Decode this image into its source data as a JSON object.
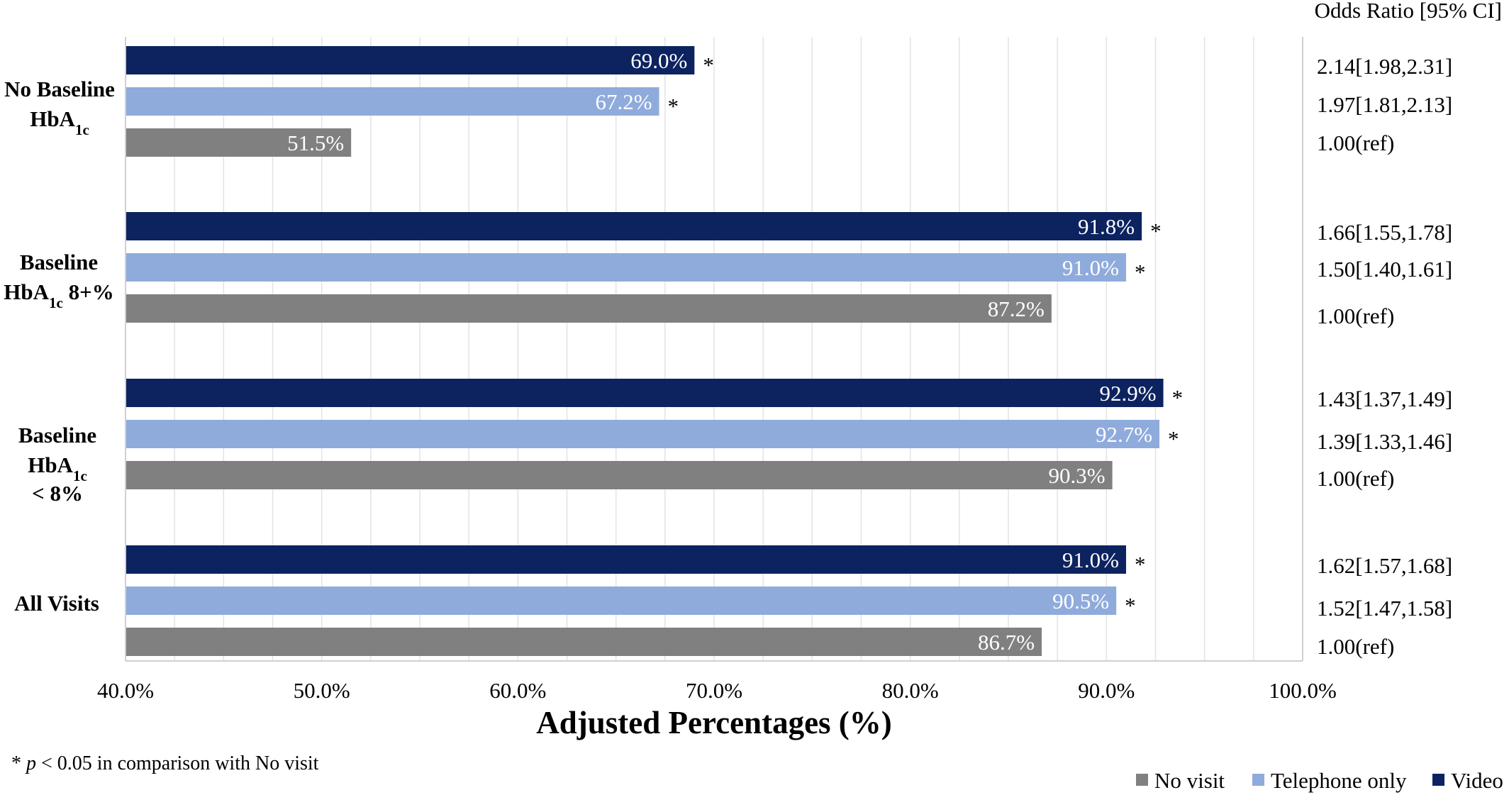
{
  "chart_data": {
    "type": "bar",
    "orientation": "horizontal",
    "xlabel": "Adjusted Percentages (%)",
    "xlim": [
      40,
      100
    ],
    "xticks": [
      "40.0%",
      "50.0%",
      "60.0%",
      "70.0%",
      "80.0%",
      "90.0%",
      "100.0%"
    ],
    "or_header": "Odds Ratio [95% CI]",
    "groups": [
      {
        "label_lines": [
          "No Baseline",
          "HbA_1c"
        ],
        "bars": [
          {
            "series": "Video",
            "value": 69.0,
            "label": "69.0%",
            "star": true,
            "or": "2.14[1.98,2.31]"
          },
          {
            "series": "Telephone only",
            "value": 67.2,
            "label": "67.2%",
            "star": true,
            "or": "1.97[1.81,2.13]"
          },
          {
            "series": "No visit",
            "value": 51.5,
            "label": "51.5%",
            "star": false,
            "or": "1.00(ref)"
          }
        ]
      },
      {
        "label_lines": [
          "Baseline",
          "HbA_1c 8+%"
        ],
        "bars": [
          {
            "series": "Video",
            "value": 91.8,
            "label": "91.8%",
            "star": true,
            "or": "1.66[1.55,1.78]"
          },
          {
            "series": "Telephone only",
            "value": 91.0,
            "label": "91.0%",
            "star": true,
            "or": "1.50[1.40,1.61]"
          },
          {
            "series": "No visit",
            "value": 87.2,
            "label": "87.2%",
            "star": false,
            "or": "1.00(ref)"
          }
        ]
      },
      {
        "label_lines": [
          "Baseline",
          "HbA_1c",
          "< 8%"
        ],
        "bars": [
          {
            "series": "Video",
            "value": 92.9,
            "label": "92.9%",
            "star": true,
            "or": "1.43[1.37,1.49]"
          },
          {
            "series": "Telephone only",
            "value": 92.7,
            "label": "92.7%",
            "star": true,
            "or": "1.39[1.33,1.46]"
          },
          {
            "series": "No visit",
            "value": 90.3,
            "label": "90.3%",
            "star": false,
            "or": "1.00(ref)"
          }
        ]
      },
      {
        "label_lines": [
          "All Visits"
        ],
        "bars": [
          {
            "series": "Video",
            "value": 91.0,
            "label": "91.0%",
            "star": true,
            "or": "1.62[1.57,1.68]"
          },
          {
            "series": "Telephone only",
            "value": 90.5,
            "label": "90.5%",
            "star": true,
            "or": "1.52[1.47,1.58]"
          },
          {
            "series": "No visit",
            "value": 86.7,
            "label": "86.7%",
            "star": false,
            "or": "1.00(ref)"
          }
        ]
      }
    ],
    "series": [
      {
        "name": "No visit",
        "color": "#808080"
      },
      {
        "name": "Telephone only",
        "color": "#8fabdc"
      },
      {
        "name": "Video",
        "color": "#0d2360"
      }
    ],
    "star_symbol": "*",
    "footnote": {
      "star": "*",
      "p": "p",
      "rest": " < 0.05 in comparison with No visit"
    },
    "grid": true,
    "legend_position": "bottom-right"
  }
}
